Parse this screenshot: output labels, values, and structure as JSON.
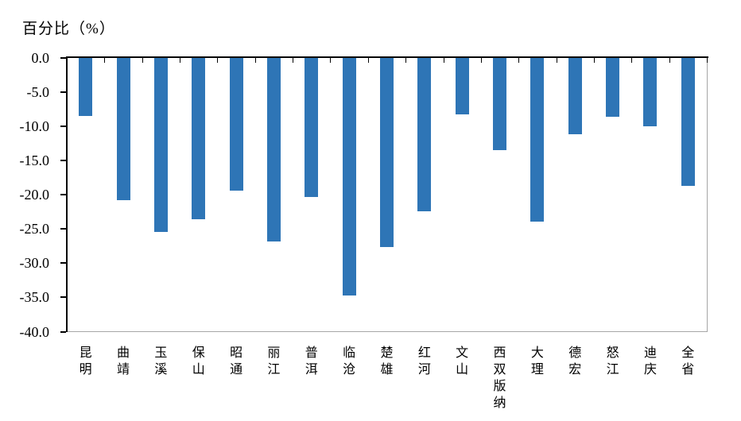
{
  "title": "百分比（%）",
  "colors": {
    "bar": "#2E75B6",
    "axis": "#000000",
    "plot_border": "#A6A6A6",
    "background": "#FFFFFF",
    "text": "#000000"
  },
  "chart_data": {
    "type": "bar",
    "orientation": "vertical",
    "title": "百分比（%）",
    "ylabel": "百分比（%）",
    "xlabel": "",
    "categories": [
      "昆明",
      "曲靖",
      "玉溪",
      "保山",
      "昭通",
      "丽江",
      "普洱",
      "临沧",
      "楚雄",
      "红河",
      "文山",
      "西双版纳",
      "大理",
      "德宏",
      "怒江",
      "迪庆",
      "全省"
    ],
    "values": [
      -8.5,
      -20.8,
      -25.4,
      -23.6,
      -19.4,
      -26.8,
      -20.4,
      -34.7,
      -27.7,
      -22.4,
      -8.3,
      -13.5,
      -23.9,
      -11.2,
      -8.6,
      -10.0,
      -18.7
    ],
    "ylim": [
      -40.0,
      0.0
    ],
    "yticks": [
      0.0,
      -5.0,
      -10.0,
      -15.0,
      -20.0,
      -25.0,
      -30.0,
      -35.0,
      -40.0
    ],
    "ytick_labels": [
      "0.0",
      "-5.0",
      "-10.0",
      "-15.0",
      "-20.0",
      "-25.0",
      "-30.0",
      "-35.0",
      "-40.0"
    ],
    "grid": false,
    "legend": false
  }
}
